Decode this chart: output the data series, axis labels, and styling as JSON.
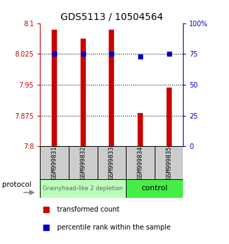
{
  "title": "GDS5113 / 10504564",
  "samples": [
    "GSM999831",
    "GSM999832",
    "GSM999833",
    "GSM999834",
    "GSM999835"
  ],
  "transformed_counts": [
    8.085,
    8.063,
    8.085,
    7.882,
    7.943
  ],
  "percentile_ranks": [
    75,
    75,
    75,
    73,
    75
  ],
  "ylim_left": [
    7.8,
    8.1
  ],
  "ylim_right": [
    0,
    100
  ],
  "y_ticks_left": [
    7.8,
    7.875,
    7.95,
    8.025,
    8.1
  ],
  "y_ticks_right": [
    0,
    25,
    50,
    75,
    100
  ],
  "y_tick_labels_left": [
    "7.8",
    "7.875",
    "7.95",
    "8.025",
    "8.1"
  ],
  "y_tick_labels_right": [
    "0",
    "25",
    "50",
    "75",
    "100%"
  ],
  "bar_color": "#cc0000",
  "dot_color": "#0000cc",
  "bar_bottom": 7.8,
  "group1_samples": [
    0,
    1,
    2
  ],
  "group2_samples": [
    3,
    4
  ],
  "group1_label": "Grainyhead-like 2 depletion",
  "group2_label": "control",
  "group1_color": "#bbffbb",
  "group2_color": "#44ee44",
  "protocol_label": "protocol",
  "legend_bar_label": "transformed count",
  "legend_dot_label": "percentile rank within the sample",
  "axis_color_left": "#cc0000",
  "axis_color_right": "#0000cc",
  "sample_box_color": "#cccccc",
  "title_fontsize": 10,
  "tick_fontsize": 7,
  "sample_fontsize": 6.5,
  "group_fontsize1": 6,
  "group_fontsize2": 8,
  "legend_fontsize": 7
}
